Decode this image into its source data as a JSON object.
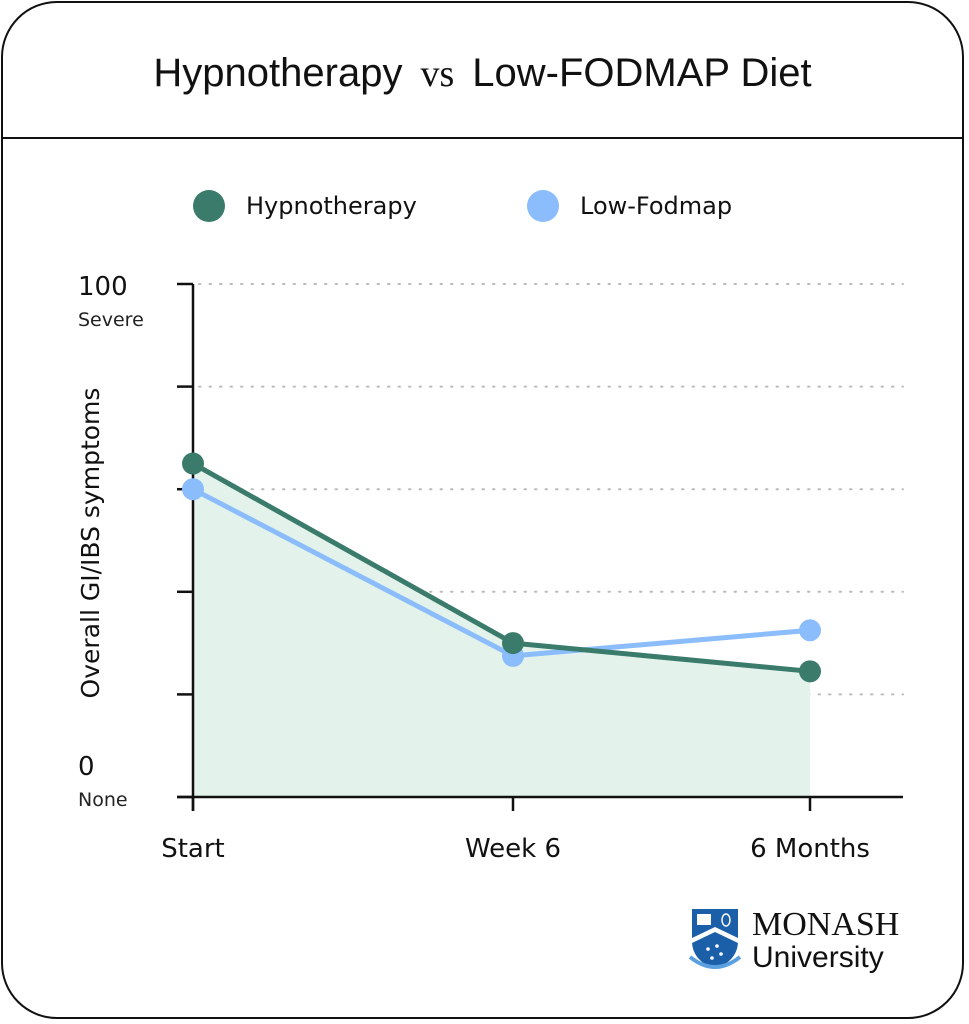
{
  "header": {
    "title_left": "Hypnotherapy",
    "title_vs": "vs",
    "title_right": "Low-FODMAP Diet"
  },
  "colors": {
    "hypnotherapy": "#3a7b6c",
    "low_fodmap": "#8bbdfc",
    "area_fill": "#e3f2ea",
    "grid": "#bbbbbb"
  },
  "chart_data": {
    "type": "line",
    "title": "Hypnotherapy vs Low-FODMAP Diet",
    "xlabel": "",
    "ylabel": "Overall GI/IBS symptoms",
    "categories": [
      "Start",
      "Week 6",
      "6 Months"
    ],
    "series": [
      {
        "name": "Hypnotherapy",
        "values": [
          65,
          30,
          24.5
        ],
        "area_fill": true
      },
      {
        "name": "Low-Fodmap",
        "values": [
          60,
          27.5,
          32.5
        ]
      }
    ],
    "ylim": [
      0,
      100
    ],
    "yticks": [
      0,
      20,
      40,
      60,
      80,
      100
    ],
    "ytick_labels": {
      "top": {
        "value": "100",
        "note": "Severe"
      },
      "bottom": {
        "value": "0",
        "note": "None"
      }
    },
    "grid": "horizontal-dotted",
    "legend_position": "top"
  },
  "logo": {
    "line1": "MONASH",
    "line2": "University"
  }
}
